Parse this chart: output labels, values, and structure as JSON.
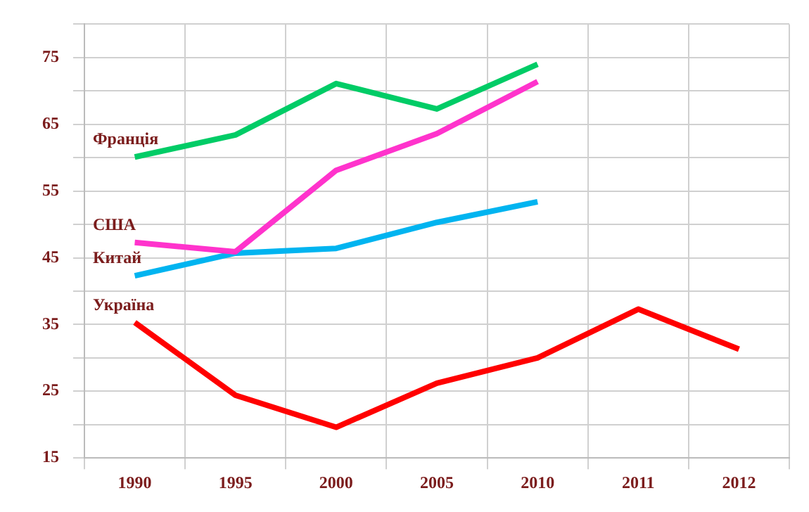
{
  "chart_data": {
    "type": "line",
    "categories": [
      "1990",
      "1995",
      "2000",
      "2005",
      "2010",
      "2011",
      "2012"
    ],
    "ylim": [
      15,
      80
    ],
    "yticks": [
      15,
      {
        "value": 20,
        "label": null
      },
      25,
      {
        "value": 30,
        "label": null
      },
      35,
      {
        "value": 40,
        "label": null
      },
      45,
      {
        "value": 50,
        "label": null
      },
      55,
      {
        "value": 60,
        "label": null
      },
      65,
      {
        "value": 70,
        "label": null
      },
      75,
      {
        "value": 80,
        "label": null
      }
    ],
    "grid": true,
    "legend": false,
    "marker": "none",
    "line_style": "solid",
    "series": [
      {
        "name": "Франція",
        "color": "#00cc66",
        "values": [
          60.1,
          63.4,
          71.1,
          67.3,
          74,
          null,
          null
        ]
      },
      {
        "name": "США",
        "color": "#ff33cc",
        "values": [
          47.3,
          45.9,
          58.1,
          63.6,
          71.4,
          null,
          null
        ]
      },
      {
        "name": "Китай",
        "color": "#00b4f0",
        "values": [
          42.3,
          45.7,
          46.4,
          50.3,
          53.4,
          null,
          null
        ]
      },
      {
        "name": "Україна",
        "color": "#ff0000",
        "values": [
          35.3,
          24.4,
          19.6,
          26.2,
          30,
          37.3,
          31.3
        ]
      }
    ]
  }
}
